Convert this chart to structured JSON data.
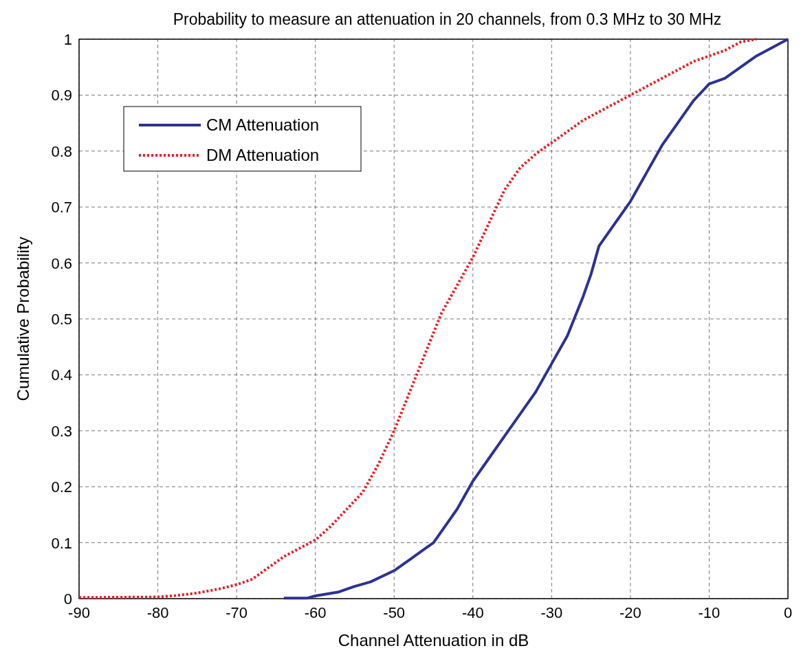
{
  "chart_data": {
    "type": "line",
    "title": "Probability to measure an attenuation in 20 channels, from 0.3 MHz to 30 MHz",
    "xlabel": "Channel Attenuation in dB",
    "ylabel": "Cumulative Probability",
    "xlim": [
      -90,
      0
    ],
    "xticks": [
      -90,
      -80,
      -70,
      -60,
      -50,
      -40,
      -30,
      -20,
      -10,
      0
    ],
    "ylim": [
      0,
      1
    ],
    "yticks": [
      0,
      0.1,
      0.2,
      0.3,
      0.4,
      0.5,
      0.6,
      0.7,
      0.8,
      0.9,
      1
    ],
    "grid": true,
    "legend": "top left",
    "series": [
      {
        "name": "CM Attenuation",
        "color": "#2e3192",
        "line_style": "solid",
        "x": [
          -64,
          -61,
          -60,
          -57,
          -55,
          -53,
          -50,
          -48,
          -46,
          -45,
          -44,
          -42,
          -40,
          -38,
          -36,
          -34,
          -32,
          -30,
          -28,
          -26,
          -25,
          -24,
          -22,
          -20,
          -18,
          -16,
          -14,
          -12,
          -10,
          -8,
          -6,
          -4,
          -2,
          0
        ],
        "values": [
          0.001,
          0.001,
          0.005,
          0.012,
          0.022,
          0.03,
          0.05,
          0.07,
          0.09,
          0.1,
          0.12,
          0.16,
          0.21,
          0.25,
          0.29,
          0.33,
          0.37,
          0.42,
          0.47,
          0.54,
          0.58,
          0.63,
          0.67,
          0.71,
          0.76,
          0.81,
          0.85,
          0.89,
          0.92,
          0.93,
          0.95,
          0.97,
          0.985,
          1
        ]
      },
      {
        "name": "DM Attenuation",
        "color": "#ed1c24",
        "line_style": "dotted",
        "x": [
          -90,
          -80,
          -78,
          -75,
          -72,
          -70,
          -68,
          -66,
          -64,
          -62,
          -60,
          -58,
          -56,
          -54,
          -52,
          -50,
          -48,
          -46,
          -44,
          -42,
          -40,
          -38,
          -36,
          -34,
          -32,
          -30,
          -28,
          -26,
          -24,
          -22,
          -20,
          -18,
          -16,
          -14,
          -12,
          -10,
          -8,
          -6,
          -4
        ],
        "values": [
          0.002,
          0.003,
          0.005,
          0.01,
          0.018,
          0.025,
          0.035,
          0.055,
          0.075,
          0.09,
          0.105,
          0.13,
          0.16,
          0.19,
          0.24,
          0.3,
          0.37,
          0.44,
          0.51,
          0.56,
          0.61,
          0.67,
          0.73,
          0.77,
          0.795,
          0.815,
          0.835,
          0.855,
          0.87,
          0.885,
          0.9,
          0.915,
          0.93,
          0.945,
          0.96,
          0.97,
          0.98,
          0.995,
          1
        ]
      }
    ]
  }
}
